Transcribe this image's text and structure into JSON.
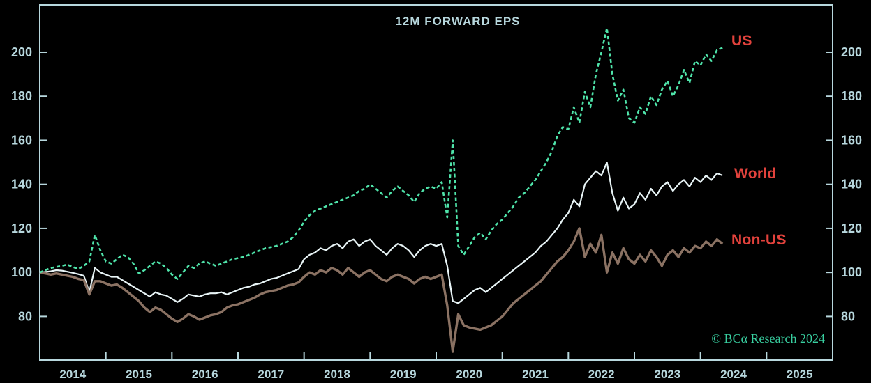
{
  "copyright": "© BCα Research 2024",
  "chart_data": {
    "type": "line",
    "title": "12M FORWARD EPS",
    "x_unit": "monthly, Jan 2014 through May 2024",
    "index_base": "indexed to 100 at Jan 2014",
    "xlim": [
      2014,
      2026
    ],
    "ylim": [
      60.2,
      221.5
    ],
    "grid": false,
    "legend_position": "right of line ends, red labels",
    "y_ticks": [
      80,
      100,
      120,
      140,
      160,
      180,
      200
    ],
    "x_year_labels": [
      2014,
      2015,
      2016,
      2017,
      2018,
      2019,
      2020,
      2021,
      2022,
      2023,
      2024,
      2025
    ],
    "axis_color": "#b7d7dd",
    "label_color": "#e2423c",
    "start": "2014-01",
    "end": "2024-05",
    "series": [
      {
        "name": "World",
        "color": "#e8f4f6",
        "style": "solid",
        "values": [
          100,
          100.2,
          100.5,
          101,
          100.8,
          100.3,
          99.8,
          99.2,
          98.5,
          91,
          102,
          100,
          99,
          98,
          98,
          96.5,
          95,
          93.5,
          92,
          90.5,
          89,
          91,
          90,
          89.5,
          88,
          86.5,
          88,
          90,
          89.5,
          89,
          90,
          90.5,
          90.5,
          91,
          90,
          91,
          92,
          93,
          93.5,
          94.5,
          95,
          96,
          97,
          97.5,
          98.5,
          99.5,
          100.5,
          101.5,
          106,
          108,
          109,
          111,
          110,
          112,
          113,
          111,
          114,
          115,
          112,
          114,
          115,
          112,
          110,
          108,
          111,
          113,
          112,
          110,
          107,
          110,
          112,
          113,
          112,
          113,
          103,
          87,
          86,
          88,
          90,
          92,
          93,
          91,
          93,
          95,
          97,
          99,
          101,
          103,
          105,
          107,
          109,
          112,
          114,
          117,
          120,
          124,
          127,
          133,
          130,
          140,
          143,
          146,
          144,
          150,
          136,
          128,
          134,
          129,
          131,
          136,
          133,
          138,
          135,
          139,
          141,
          137,
          140,
          142,
          139,
          143,
          141,
          144,
          142,
          145,
          144
        ]
      },
      {
        "name": "Non-US",
        "color": "#8b7263",
        "style": "solid",
        "values": [
          100,
          99.5,
          99,
          99.5,
          99,
          98.5,
          98,
          97,
          96.5,
          90,
          96,
          96,
          95,
          94,
          94.5,
          93,
          91,
          89,
          87,
          84,
          82,
          84,
          83,
          81,
          79,
          77.5,
          79,
          81,
          80,
          78.5,
          79.5,
          80.5,
          81,
          82,
          84,
          85,
          85.5,
          86.5,
          87.5,
          88.5,
          90,
          91,
          91.5,
          92,
          93,
          94,
          94.5,
          95.5,
          98,
          100,
          99,
          101,
          100,
          102,
          101,
          99,
          102,
          100,
          98,
          100,
          101,
          99,
          97,
          96,
          98,
          99,
          98,
          97,
          95,
          97,
          98,
          97,
          98,
          99,
          85,
          64,
          81,
          76,
          75,
          74.5,
          74,
          75,
          76,
          78,
          80,
          83,
          86,
          88,
          90,
          92,
          94,
          96,
          99,
          102,
          105,
          107,
          110,
          114,
          120,
          107,
          113,
          109,
          117,
          100,
          109,
          104,
          111,
          106,
          104,
          108,
          105,
          110,
          107,
          103,
          108,
          110,
          107,
          111,
          109,
          112,
          111,
          114,
          112,
          115,
          113
        ]
      },
      {
        "name": "US",
        "color": "#4fe4aa",
        "style": "dashed",
        "values": [
          100,
          101,
          102,
          102.5,
          103,
          103.5,
          102.5,
          101.5,
          103,
          105,
          117,
          110,
          105,
          104,
          106,
          108,
          107,
          104,
          99.5,
          101,
          103,
          105,
          104,
          102,
          99,
          97,
          100,
          103,
          102,
          104,
          105,
          104,
          103,
          104,
          105,
          106,
          106.5,
          107,
          108,
          109,
          110,
          111,
          111.5,
          112,
          113,
          114,
          116,
          119,
          123,
          126,
          128,
          129,
          130,
          131,
          132,
          133,
          134,
          135,
          137,
          138,
          140,
          138,
          136,
          134,
          137,
          139,
          137,
          135,
          132,
          136,
          138,
          139,
          138,
          141,
          125,
          160,
          112,
          108,
          112,
          116,
          118,
          115,
          119,
          122,
          124,
          127,
          130,
          134,
          136,
          139,
          142,
          146,
          150,
          155,
          162,
          166,
          165,
          175,
          168,
          182,
          175,
          190,
          200,
          211,
          190,
          178,
          183,
          170,
          168,
          175,
          172,
          180,
          176,
          183,
          187,
          180,
          185,
          192,
          186,
          196,
          194,
          199,
          196,
          201,
          202
        ]
      }
    ]
  }
}
